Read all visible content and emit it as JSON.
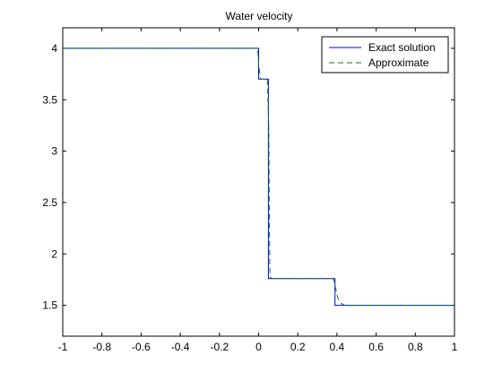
{
  "chart_data": {
    "type": "line",
    "title": "Water velocity",
    "xlabel": "",
    "ylabel": "",
    "xlim": [
      -1,
      1
    ],
    "ylim": [
      1.2,
      4.2
    ],
    "xticks": [
      -1,
      -0.8,
      -0.6,
      -0.4,
      -0.2,
      0,
      0.2,
      0.4,
      0.6,
      0.8,
      1
    ],
    "xtick_labels": [
      "-1",
      "-0.8",
      "-0.6",
      "-0.4",
      "-0.2",
      "0",
      "0.2",
      "0.4",
      "0.6",
      "0.8",
      "1"
    ],
    "yticks": [
      1.5,
      2,
      2.5,
      3,
      3.5,
      4
    ],
    "ytick_labels": [
      "1.5",
      "2",
      "2.5",
      "3",
      "3.5",
      "4"
    ],
    "grid": false,
    "legend": {
      "position": "top-right"
    },
    "series": [
      {
        "name": "Exact solution",
        "color": "#0000ff",
        "style": "solid",
        "x": [
          -1,
          0.0,
          0.0,
          0.05,
          0.05,
          0.39,
          0.39,
          1
        ],
        "y": [
          4.0,
          4.0,
          3.7,
          3.7,
          1.76,
          1.76,
          1.5,
          1.5
        ]
      },
      {
        "name": "Approximate",
        "color": "#008000",
        "style": "dashed",
        "x": [
          -1,
          -0.005,
          0.0,
          0.01,
          0.045,
          0.052,
          0.055,
          0.057,
          0.06,
          0.07,
          0.38,
          0.385,
          0.395,
          0.405,
          0.42,
          0.44,
          1
        ],
        "y": [
          4.0,
          4.0,
          3.85,
          3.7,
          3.7,
          3.2,
          2.3,
          1.85,
          1.77,
          1.76,
          1.76,
          1.74,
          1.65,
          1.57,
          1.52,
          1.5,
          1.5
        ]
      }
    ]
  }
}
